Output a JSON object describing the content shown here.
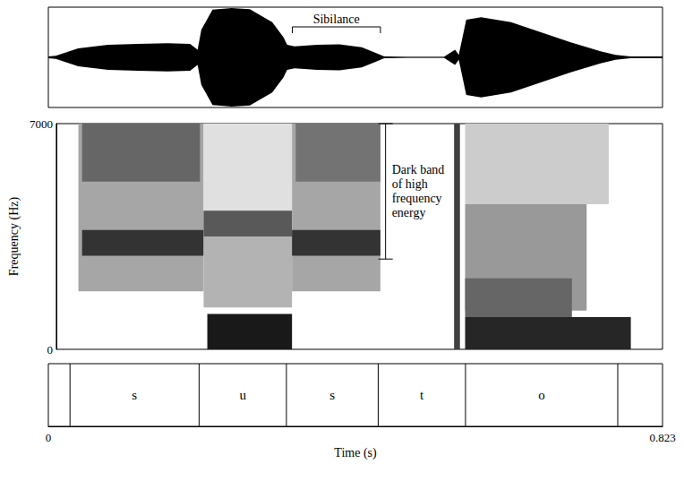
{
  "chart_data": [
    {
      "type": "area",
      "color": "#000000",
      "tick_labels": false,
      "xlim": [
        0,
        0.823
      ],
      "ylim": [
        -1,
        1
      ],
      "x": [
        0,
        0.01,
        0.04,
        0.08,
        0.12,
        0.16,
        0.19,
        0.2,
        0.205,
        0.22,
        0.245,
        0.27,
        0.3,
        0.315,
        0.32,
        0.33,
        0.36,
        0.39,
        0.42,
        0.44,
        0.45,
        0.48,
        0.53,
        0.545,
        0.55,
        0.56,
        0.58,
        0.62,
        0.66,
        0.7,
        0.74,
        0.76,
        0.78,
        0.823
      ],
      "values": [
        0.02,
        0.03,
        0.18,
        0.25,
        0.27,
        0.28,
        0.27,
        0.15,
        0.55,
        0.95,
        0.98,
        0.96,
        0.7,
        0.4,
        0.25,
        0.22,
        0.25,
        0.26,
        0.2,
        0.08,
        0.02,
        0.01,
        0.01,
        0.15,
        0.05,
        0.75,
        0.8,
        0.7,
        0.5,
        0.3,
        0.12,
        0.05,
        0.02,
        0.02
      ],
      "annotations": [
        {
          "text": "Sibilance",
          "x": [
            0.327,
            0.445
          ]
        }
      ]
    },
    {
      "type": "heatmap",
      "ylabel": "Frequency (Hz)",
      "tick_labels": "y",
      "xlim": [
        0,
        0.823
      ],
      "ylim": [
        0,
        7000
      ],
      "yticks": [
        0,
        7000
      ],
      "bands": [
        {
          "t": [
            0.03,
            0.2
          ],
          "f": [
            1800,
            7000
          ],
          "level": 0.35
        },
        {
          "t": [
            0.035,
            0.195
          ],
          "f": [
            5200,
            7000
          ],
          "level": 0.6
        },
        {
          "t": [
            0.035,
            0.2
          ],
          "f": [
            2900,
            3700
          ],
          "level": 0.8
        },
        {
          "t": [
            0.2,
            0.32
          ],
          "f": [
            3900,
            7000
          ],
          "level": 0.12
        },
        {
          "t": [
            0.2,
            0.32
          ],
          "f": [
            1300,
            4300
          ],
          "level": 0.3
        },
        {
          "t": [
            0.2,
            0.32
          ],
          "f": [
            3500,
            4300
          ],
          "level": 0.65
        },
        {
          "t": [
            0.205,
            0.32
          ],
          "f": [
            0,
            1100
          ],
          "level": 0.9
        },
        {
          "t": [
            0.32,
            0.44
          ],
          "f": [
            1800,
            7000
          ],
          "level": 0.35
        },
        {
          "t": [
            0.325,
            0.44
          ],
          "f": [
            5200,
            7000
          ],
          "level": 0.55
        },
        {
          "t": [
            0.32,
            0.44
          ],
          "f": [
            2900,
            3700
          ],
          "level": 0.8
        },
        {
          "t": [
            0.54,
            0.548
          ],
          "f": [
            0,
            7000
          ],
          "level": 0.75
        },
        {
          "t": [
            0.555,
            0.75
          ],
          "f": [
            4500,
            7000
          ],
          "level": 0.2
        },
        {
          "t": [
            0.555,
            0.72
          ],
          "f": [
            1200,
            4500
          ],
          "level": 0.4
        },
        {
          "t": [
            0.555,
            0.7
          ],
          "f": [
            1000,
            2200
          ],
          "level": 0.6
        },
        {
          "t": [
            0.555,
            0.78
          ],
          "f": [
            0,
            1000
          ],
          "level": 0.85
        }
      ],
      "annotations": [
        {
          "text": "Dark band of high frequency energy",
          "x": 0.447,
          "y": [
            2800,
            7000
          ]
        }
      ]
    },
    {
      "type": "segments",
      "xlabel": "Time (s)",
      "tick_labels": "x",
      "xlim": [
        0,
        0.823
      ],
      "xticks": [
        0,
        0.823
      ],
      "categories": [
        "s",
        "u",
        "s",
        "t",
        "o"
      ],
      "boundaries": [
        0.029,
        0.202,
        0.319,
        0.442,
        0.559,
        0.763
      ]
    }
  ]
}
